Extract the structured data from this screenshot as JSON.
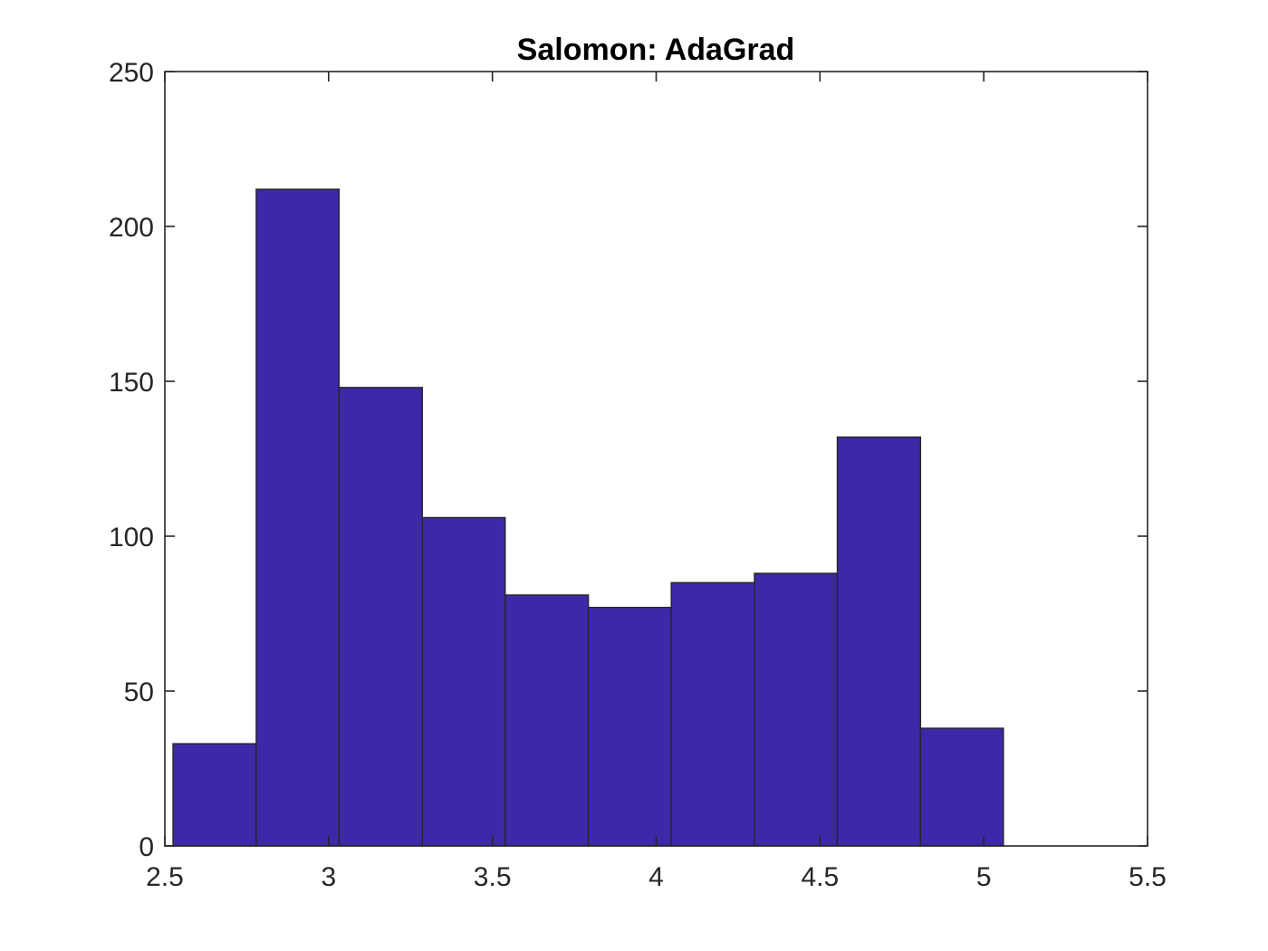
{
  "chart_data": {
    "type": "bar",
    "subtype": "histogram",
    "title": "Salomon: AdaGrad",
    "xlabel": "",
    "ylabel": "",
    "xlim": [
      2.5,
      5.5
    ],
    "ylim": [
      0,
      250
    ],
    "x_ticks": [
      2.5,
      3,
      3.5,
      4,
      4.5,
      5,
      5.5
    ],
    "x_tick_labels": [
      "2.5",
      "3",
      "3.5",
      "4",
      "4.5",
      "5",
      "5.5"
    ],
    "y_ticks": [
      0,
      50,
      100,
      150,
      200,
      250
    ],
    "y_tick_labels": [
      "0",
      "50",
      "100",
      "150",
      "200",
      "250"
    ],
    "bin_edges": [
      2.525,
      2.779,
      3.032,
      3.286,
      3.539,
      3.793,
      4.046,
      4.3,
      4.553,
      4.807,
      5.06
    ],
    "values": [
      33,
      212,
      148,
      106,
      81,
      77,
      85,
      88,
      132,
      38
    ],
    "bar_color": "#3d28a8",
    "edge_color": "#262626",
    "grid": false,
    "legend": "none"
  }
}
